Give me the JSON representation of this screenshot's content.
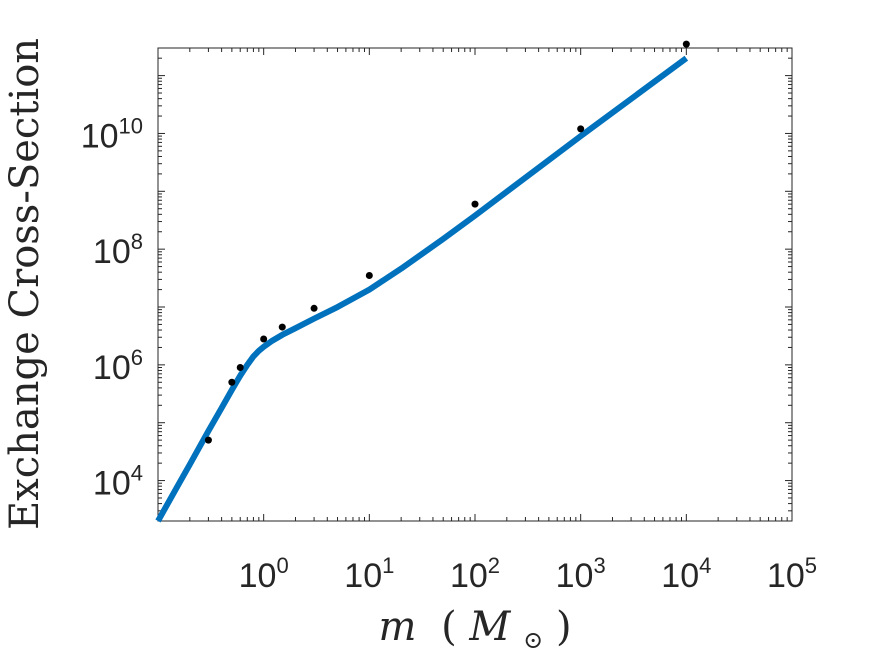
{
  "chart_data": {
    "type": "line",
    "title": "",
    "xlabel": "m (M⊙)",
    "xlabel_parts": {
      "var": "m",
      "open": "(",
      "unit": "M",
      "sub": "⊙",
      "close": ")"
    },
    "ylabel": "Exchange Cross-Section",
    "xscale": "log",
    "yscale": "log",
    "xlim": [
      0.1,
      100000
    ],
    "ylim": [
      2000,
      300000000000
    ],
    "grid": false,
    "legend": "none",
    "x_ticks": [
      {
        "value": 1,
        "base": "10",
        "exp": "0"
      },
      {
        "value": 10,
        "base": "10",
        "exp": "1"
      },
      {
        "value": 100,
        "base": "10",
        "exp": "2"
      },
      {
        "value": 1000,
        "base": "10",
        "exp": "3"
      },
      {
        "value": 10000,
        "base": "10",
        "exp": "4"
      },
      {
        "value": 100000,
        "base": "10",
        "exp": "5"
      }
    ],
    "y_ticks": [
      {
        "value": 10000,
        "base": "10",
        "exp": "4"
      },
      {
        "value": 1000000,
        "base": "10",
        "exp": "6"
      },
      {
        "value": 100000000,
        "base": "10",
        "exp": "8"
      },
      {
        "value": 10000000000,
        "base": "10",
        "exp": "10"
      }
    ],
    "series": [
      {
        "kind": "line",
        "color": "#0072BD",
        "x": [
          0.1,
          0.15,
          0.2,
          0.3,
          0.4,
          0.5,
          0.6,
          0.7,
          0.8,
          0.9,
          1.0,
          1.2,
          1.5,
          2,
          3,
          5,
          10,
          20,
          50,
          100,
          1000,
          10000
        ],
        "y": [
          2000,
          7500,
          19000,
          72000,
          180000,
          370000,
          650000,
          1000000,
          1400000,
          1750000,
          2050000,
          2600000,
          3300000,
          4300000,
          6300000,
          10000000,
          20000000,
          46000000,
          150000000,
          380000000,
          9000000000,
          200000000000
        ]
      },
      {
        "kind": "scatter",
        "color": "#000000",
        "x": [
          0.3,
          0.5,
          0.6,
          1,
          1.5,
          3,
          10,
          100,
          1000,
          10000
        ],
        "y": [
          50000,
          500000,
          900000,
          2800000,
          4500000,
          9500000,
          35000000,
          600000000,
          12000000000,
          350000000000
        ]
      }
    ]
  }
}
